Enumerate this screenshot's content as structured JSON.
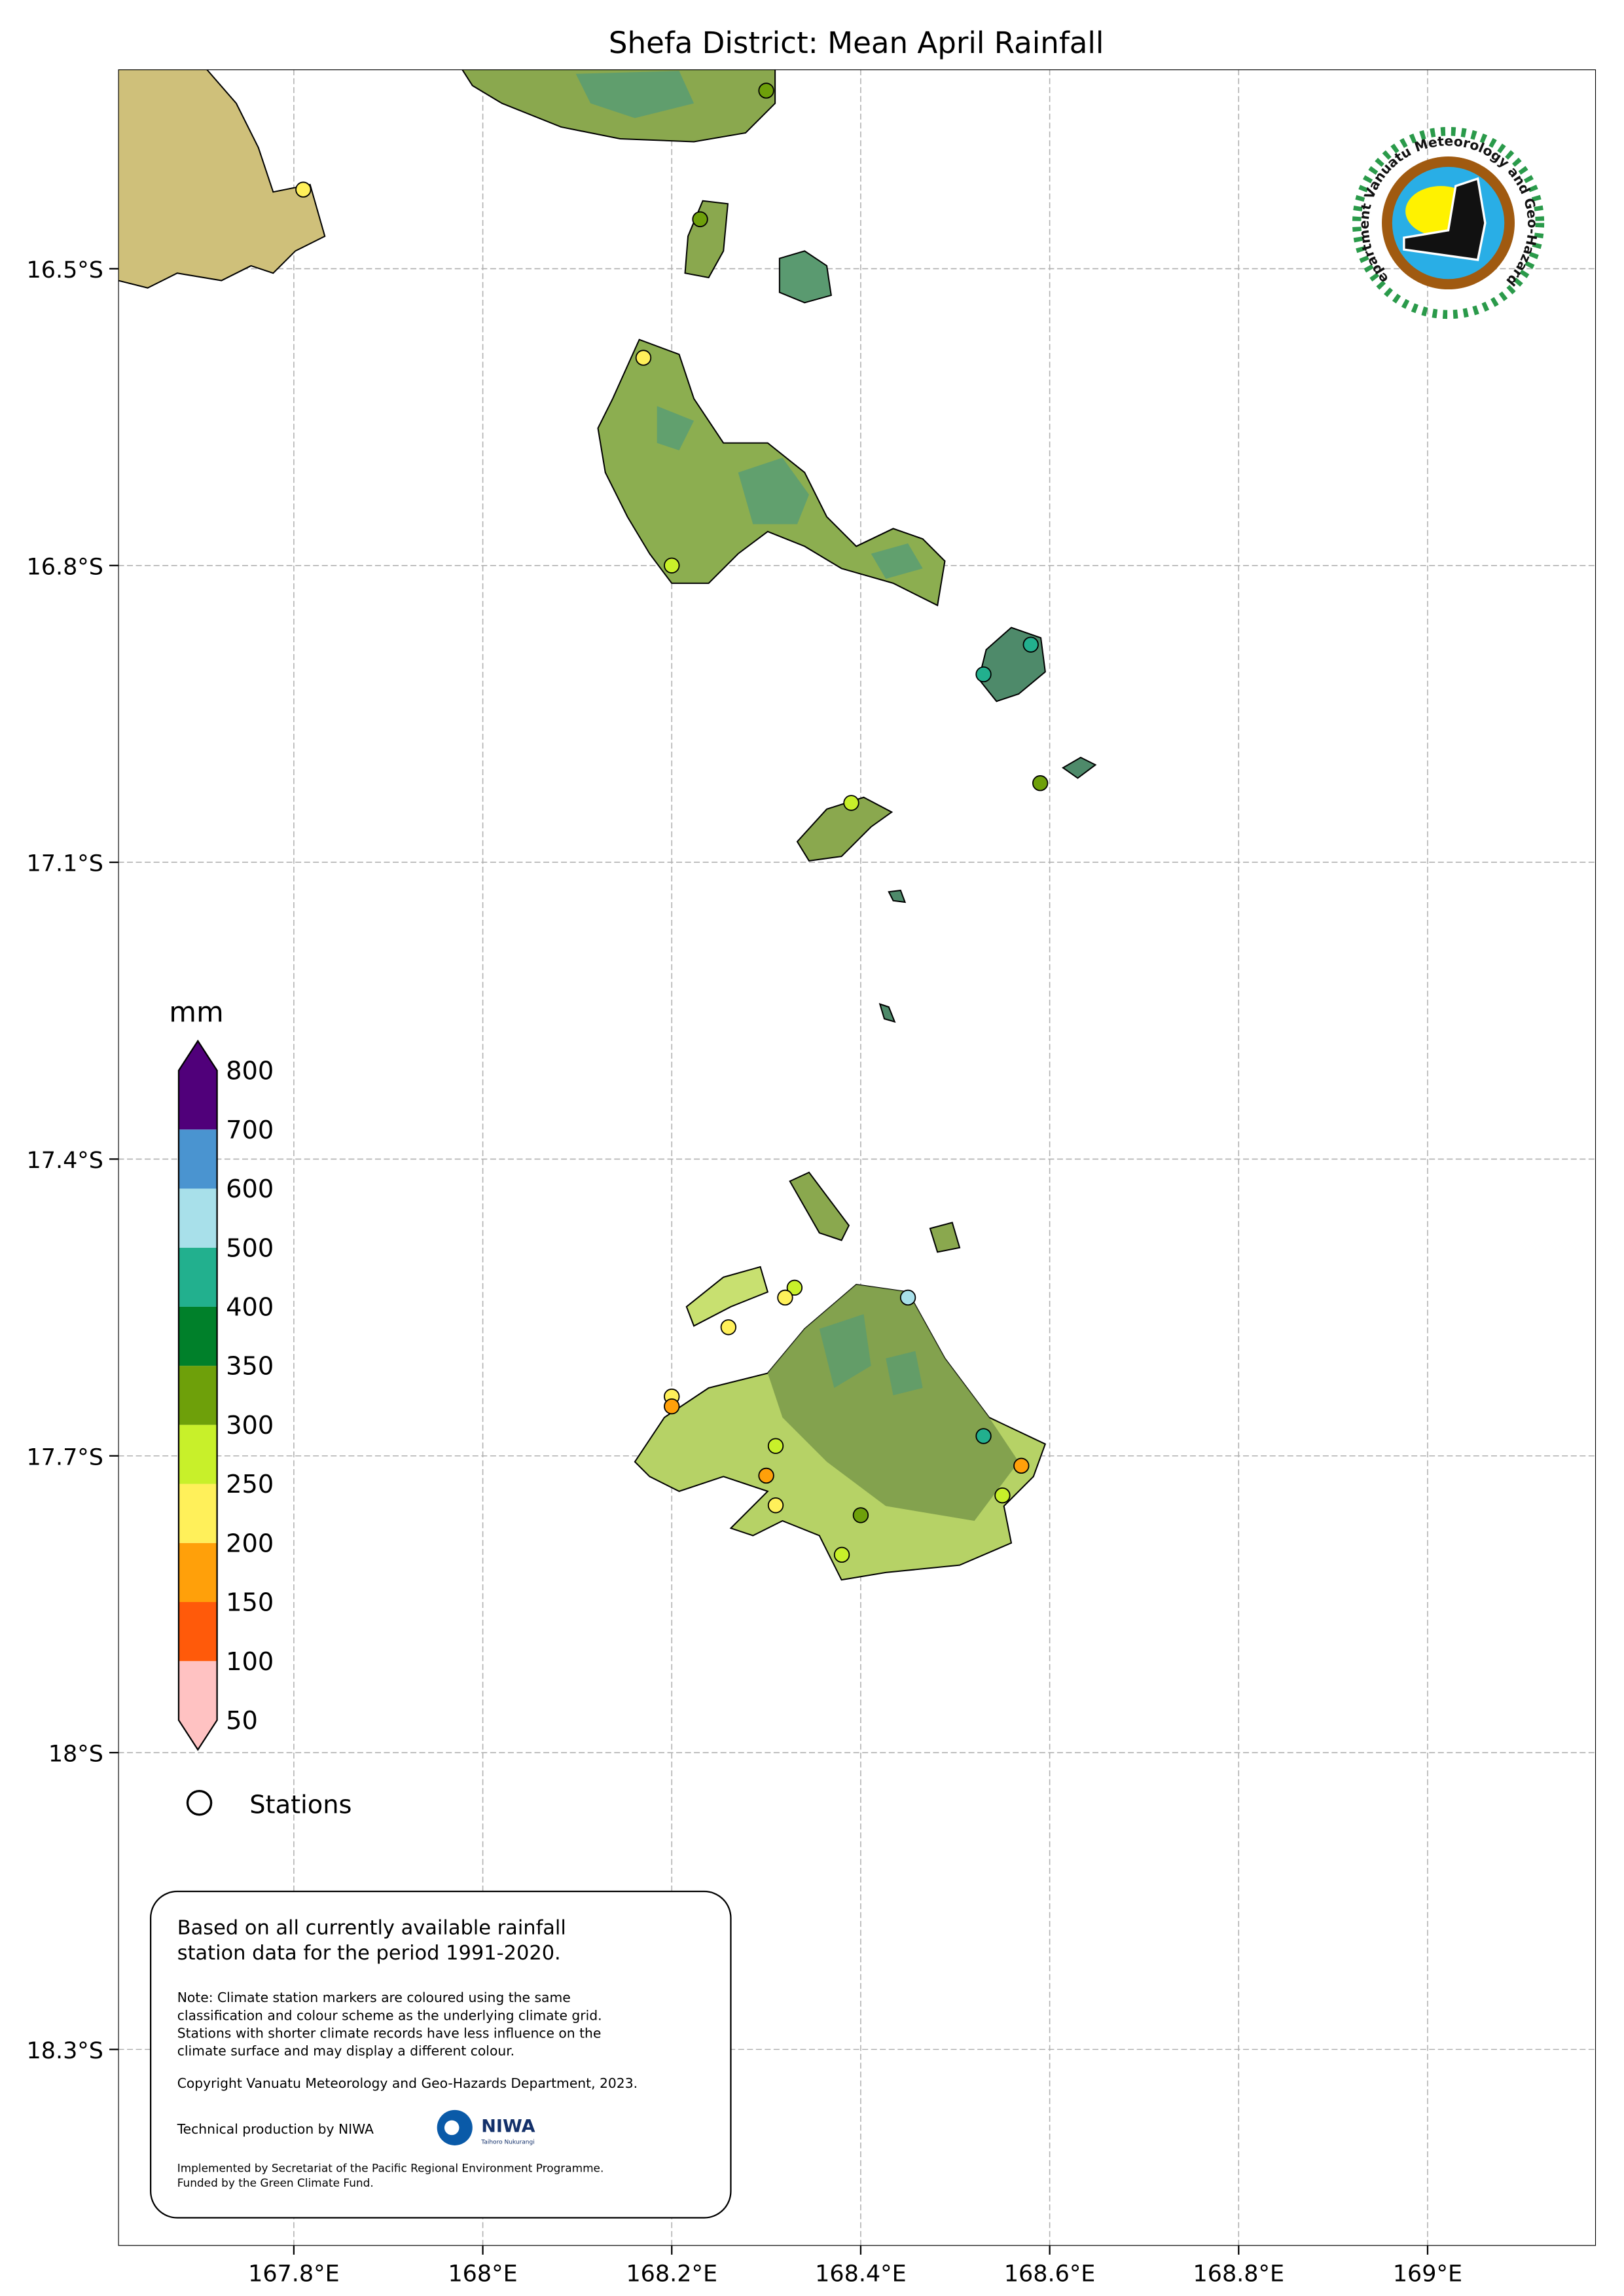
{
  "title": "Shefa District: Mean April Rainfall",
  "map": {
    "extent": {
      "lon": [
        167.61,
        169.18
      ],
      "lat": [
        -18.5,
        -16.3
      ]
    },
    "lon_ticks": [
      {
        "value": 167.8,
        "label": "167.8°E"
      },
      {
        "value": 168.0,
        "label": "168°E"
      },
      {
        "value": 168.2,
        "label": "168.2°E"
      },
      {
        "value": 168.4,
        "label": "168.4°E"
      },
      {
        "value": 168.6,
        "label": "168.6°E"
      },
      {
        "value": 168.8,
        "label": "168.8°E"
      },
      {
        "value": 169.0,
        "label": "169°E"
      }
    ],
    "lat_ticks": [
      {
        "value": -16.5,
        "label": "16.5°S"
      },
      {
        "value": -16.8,
        "label": "16.8°S"
      },
      {
        "value": -17.1,
        "label": "17.1°S"
      },
      {
        "value": -17.4,
        "label": "17.4°S"
      },
      {
        "value": -17.7,
        "label": "17.7°S"
      },
      {
        "value": -18.0,
        "label": "18°S"
      },
      {
        "value": -18.3,
        "label": "18.3°S"
      }
    ],
    "gridlines": true
  },
  "colorbar": {
    "unit": "mm",
    "bounds": [
      50,
      100,
      150,
      200,
      250,
      300,
      350,
      400,
      500,
      600,
      700,
      800
    ],
    "labels": [
      "50",
      "100",
      "150",
      "200",
      "250",
      "300",
      "350",
      "400",
      "500",
      "600",
      "700",
      "800"
    ],
    "colors": [
      "#ffc2c2",
      "#ff5a0a",
      "#ffa00a",
      "#fff05a",
      "#c8f02a",
      "#6ea00a",
      "#00802a",
      "#22b08e",
      "#a8e0ea",
      "#4a94d0",
      "#50007a"
    ],
    "extend": "both"
  },
  "legend": {
    "stations_label": "Stations"
  },
  "stations": [
    {
      "lon": 168.3,
      "lat": -16.32,
      "class": 5
    },
    {
      "lon": 167.81,
      "lat": -16.42,
      "class": 3
    },
    {
      "lon": 168.23,
      "lat": -16.45,
      "class": 5
    },
    {
      "lon": 168.17,
      "lat": -16.59,
      "class": 3
    },
    {
      "lon": 168.2,
      "lat": -16.8,
      "class": 4
    },
    {
      "lon": 168.53,
      "lat": -16.91,
      "class": 7
    },
    {
      "lon": 168.58,
      "lat": -16.88,
      "class": 7
    },
    {
      "lon": 168.59,
      "lat": -17.02,
      "class": 5
    },
    {
      "lon": 168.39,
      "lat": -17.04,
      "class": 4
    },
    {
      "lon": 168.45,
      "lat": -17.54,
      "class": 8
    },
    {
      "lon": 168.33,
      "lat": -17.53,
      "class": 4
    },
    {
      "lon": 168.32,
      "lat": -17.54,
      "class": 3
    },
    {
      "lon": 168.26,
      "lat": -17.57,
      "class": 3
    },
    {
      "lon": 168.2,
      "lat": -17.64,
      "class": 3
    },
    {
      "lon": 168.2,
      "lat": -17.65,
      "class": 2
    },
    {
      "lon": 168.31,
      "lat": -17.69,
      "class": 4
    },
    {
      "lon": 168.53,
      "lat": -17.68,
      "class": 7
    },
    {
      "lon": 168.57,
      "lat": -17.71,
      "class": 2
    },
    {
      "lon": 168.3,
      "lat": -17.72,
      "class": 2
    },
    {
      "lon": 168.31,
      "lat": -17.75,
      "class": 3
    },
    {
      "lon": 168.4,
      "lat": -17.76,
      "class": 5
    },
    {
      "lon": 168.55,
      "lat": -17.74,
      "class": 4
    },
    {
      "lon": 168.38,
      "lat": -17.8,
      "class": 4
    }
  ],
  "info_box": {
    "main": [
      "Based on all currently available rainfall",
      "station data for the period 1991-2020."
    ],
    "note": [
      "Note: Climate station markers are coloured using the same",
      "classification and colour scheme as the underlying climate grid.",
      "Stations with shorter climate records have less influence on the",
      "climate surface and may display a different colour."
    ],
    "copyright": "Copyright Vanuatu Meteorology and Geo-Hazards Department, 2023.",
    "technical": "Technical production by NIWA",
    "niwa_logo": {
      "name": "NIWA",
      "tagline": "Taihoro Nukurangi"
    },
    "implemented": [
      "Implemented by Secretariat of the Pacific Regional Environment Programme.",
      "Funded by the Green Climate Fund."
    ]
  },
  "logo": {
    "text": "Department Vanuatu Meteorology and Geo-Hazards"
  }
}
